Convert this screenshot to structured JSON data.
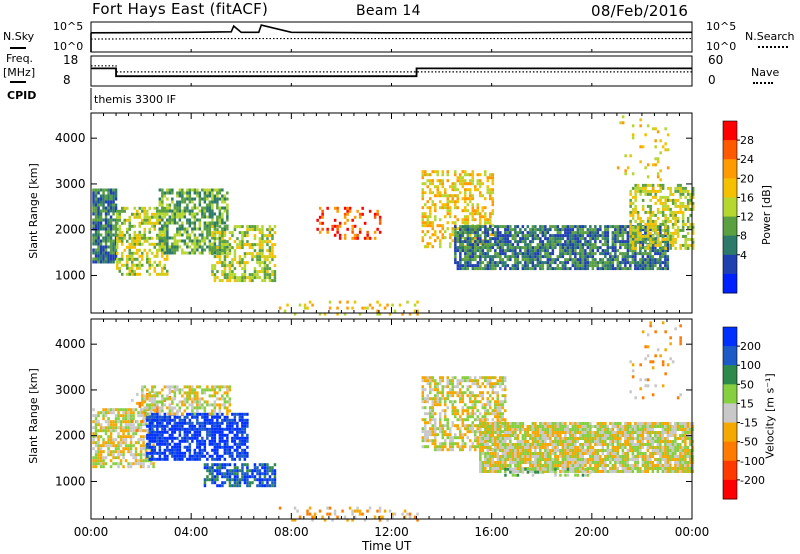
{
  "header": {
    "station": "Fort Hays East (fitACF)",
    "beam": "Beam 14",
    "date": "08/Feb/2016"
  },
  "side_labels": {
    "nsky": "N.Sky",
    "nsearch": "N.Search",
    "freq_line1": "Freq.",
    "freq_line2": "[MHz]",
    "nave": "Nave",
    "cpid": "CPID"
  },
  "chart_data": [
    {
      "type": "line",
      "name": "noise",
      "y_ticks_left": [
        "10^5",
        "10^0"
      ],
      "y_ticks_right": [
        "10^5",
        "10^0"
      ],
      "x": [
        0,
        4,
        5.6,
        5.7,
        6,
        6.7,
        6.8,
        8,
        12,
        16,
        20,
        24
      ],
      "series": [
        {
          "key": "nsky",
          "style": "solid",
          "values": [
            3.3,
            3.4,
            3.5,
            4.6,
            3.4,
            3.4,
            4.8,
            3.4,
            3.3,
            3.3,
            3.4,
            3.4
          ]
        },
        {
          "key": "nsearch",
          "style": "dotted",
          "values": [
            2.1,
            2.2,
            2.2,
            2.2,
            2.2,
            2.2,
            2.2,
            2.2,
            2.2,
            2.2,
            2.2,
            2.2
          ]
        }
      ]
    },
    {
      "type": "line",
      "name": "frequency-nave",
      "y_left_ticks": [
        "18",
        "8"
      ],
      "y_right_ticks": [
        "60",
        "0"
      ],
      "freq_steps": [
        {
          "t0": 0,
          "t1": 1,
          "value": 14
        },
        {
          "t0": 1,
          "t1": 13,
          "value": 11
        },
        {
          "t0": 13,
          "t1": 24,
          "value": 14
        }
      ],
      "nave_steps": [
        {
          "t0": 0,
          "t1": 1,
          "value": 42
        },
        {
          "t0": 1,
          "t1": 24,
          "value": 28
        }
      ],
      "cpid_label": "themis 3300 IF"
    },
    {
      "type": "heatmap",
      "name": "power",
      "ylabel": "Slant Range [km]",
      "y_ticks": [
        "1000",
        "2000",
        "3000",
        "4000"
      ],
      "y_tick_values": [
        1000,
        2000,
        3000,
        4000
      ],
      "ylim": [
        180,
        4550
      ],
      "xlim": [
        0,
        24
      ],
      "colorbar": {
        "label": "Power [dB]",
        "ticks": [
          "28",
          "24",
          "20",
          "16",
          "12",
          "8",
          "4"
        ],
        "colors": [
          "#ff0000",
          "#ff5a00",
          "#ff9a00",
          "#f5c000",
          "#b6d630",
          "#5aa040",
          "#2e7a6a",
          "#2040b0",
          "#0020ff"
        ]
      },
      "regions": [
        {
          "t0": 0.05,
          "t1": 1.0,
          "r0": 1300,
          "r1": 2900,
          "level": 6,
          "density": 0.85
        },
        {
          "t0": 1.0,
          "t1": 3.0,
          "r0": 1050,
          "r1": 2500,
          "level": 4,
          "density": 0.55
        },
        {
          "t0": 2.7,
          "t1": 5.4,
          "r0": 1500,
          "r1": 2900,
          "level": 5,
          "density": 0.7
        },
        {
          "t0": 4.8,
          "t1": 7.3,
          "r0": 900,
          "r1": 2100,
          "level": 4,
          "density": 0.6
        },
        {
          "t0": 13.2,
          "t1": 16.0,
          "r0": 1600,
          "r1": 3300,
          "level": 3,
          "density": 0.45
        },
        {
          "t0": 14.5,
          "t1": 23.0,
          "r0": 1150,
          "r1": 2100,
          "level": 6,
          "density": 0.8
        },
        {
          "t0": 21.5,
          "t1": 24.0,
          "r0": 1600,
          "r1": 3000,
          "level": 4,
          "density": 0.55
        },
        {
          "t0": 21.0,
          "t1": 23.0,
          "r0": 2900,
          "r1": 4500,
          "level": 3,
          "density": 0.08
        },
        {
          "t0": 7.5,
          "t1": 13.0,
          "r0": 180,
          "r1": 450,
          "level": 3,
          "density": 0.2
        },
        {
          "t0": 9.0,
          "t1": 11.5,
          "r0": 1800,
          "r1": 2500,
          "level": 1,
          "density": 0.25
        }
      ]
    },
    {
      "type": "heatmap",
      "name": "velocity",
      "ylabel": "Slant Range [km]",
      "y_ticks": [
        "1000",
        "2000",
        "3000",
        "4000"
      ],
      "y_tick_values": [
        1000,
        2000,
        3000,
        4000
      ],
      "ylim": [
        180,
        4550
      ],
      "xlim": [
        0,
        24
      ],
      "colorbar": {
        "label": "Velocity [m s⁻¹]",
        "ticks": [
          "200",
          "100",
          "50",
          "15",
          "-15",
          "-50",
          "-100",
          "-200"
        ],
        "colors": [
          "#0030ff",
          "#1c5ac8",
          "#2e8a4a",
          "#86d040",
          "#c8c8c8",
          "#f5a800",
          "#ff7a00",
          "#ff3a00",
          "#ff0000"
        ]
      },
      "regions": [
        {
          "t0": 0.05,
          "t1": 2.5,
          "r0": 1300,
          "r1": 2600,
          "level": 4,
          "density": 0.7
        },
        {
          "t0": 1.5,
          "t1": 3.5,
          "r0": 2100,
          "r1": 3000,
          "level": 5,
          "density": 0.15
        },
        {
          "t0": 2.2,
          "t1": 6.2,
          "r0": 1500,
          "r1": 2500,
          "level": 0,
          "density": 0.75
        },
        {
          "t0": 2.0,
          "t1": 5.5,
          "r0": 2500,
          "r1": 3100,
          "level": 4,
          "density": 0.6
        },
        {
          "t0": 4.5,
          "t1": 7.3,
          "r0": 900,
          "r1": 1400,
          "level": 1,
          "density": 0.7
        },
        {
          "t0": 13.2,
          "t1": 16.5,
          "r0": 1700,
          "r1": 3300,
          "level": 4,
          "density": 0.6
        },
        {
          "t0": 15.5,
          "t1": 24.0,
          "r0": 1250,
          "r1": 2300,
          "level": 4,
          "density": 0.9
        },
        {
          "t0": 16.5,
          "t1": 20.0,
          "r0": 1150,
          "r1": 1300,
          "level": 3,
          "density": 0.35
        },
        {
          "t0": 21.5,
          "t1": 23.5,
          "r0": 2800,
          "r1": 4500,
          "level": 5,
          "density": 0.08
        },
        {
          "t0": 7.5,
          "t1": 13.0,
          "r0": 180,
          "r1": 450,
          "level": 5,
          "density": 0.2
        }
      ]
    }
  ],
  "x_axis": {
    "label": "Time UT",
    "ticks": [
      "00:00",
      "04:00",
      "08:00",
      "12:00",
      "16:00",
      "20:00",
      "00:00"
    ],
    "tick_hours": [
      0,
      4,
      8,
      12,
      16,
      20,
      24
    ]
  }
}
